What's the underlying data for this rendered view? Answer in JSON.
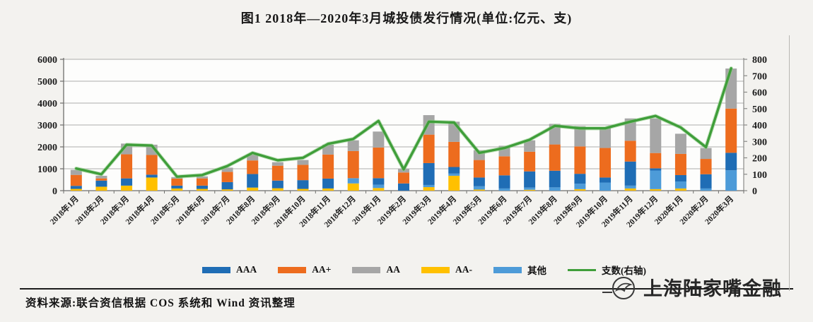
{
  "page": {
    "title": "图1  2018年—2020年3月城投债发行情况(单位:亿元、支)"
  },
  "chart_data": {
    "type": "bar",
    "subtype": "stacked-bars-with-line",
    "title": "图1  2018年—2020年3月城投债发行情况(单位:亿元、支)",
    "categories": [
      "2018年1月",
      "2018年2月",
      "2018年3月",
      "2018年4月",
      "2018年5月",
      "2018年6月",
      "2018年7月",
      "2018年8月",
      "2018年9月",
      "2018年10月",
      "2018年11月",
      "2018年12月",
      "2019年1月",
      "2019年2月",
      "2019年3月",
      "2019年4月",
      "2019年5月",
      "2019年6月",
      "2019年7月",
      "2019年8月",
      "2019年9月",
      "2019年10月",
      "2019年11月",
      "2019年12月",
      "2020年1月",
      "2020年2月",
      "2020年3月"
    ],
    "stack_order_bottom_to_top": [
      "AA-",
      "其他",
      "AAA",
      "AA+",
      "AA"
    ],
    "series": [
      {
        "name": "AAA",
        "color": "#1f6db5",
        "values": [
          140,
          280,
          330,
          130,
          130,
          150,
          330,
          620,
          350,
          400,
          450,
          0,
          300,
          330,
          1000,
          300,
          400,
          600,
          740,
          760,
          450,
          230,
          1100,
          100,
          290,
          650,
          800
        ]
      },
      {
        "name": "AA+",
        "color": "#ed6c1e",
        "values": [
          500,
          100,
          1100,
          900,
          320,
          330,
          470,
          620,
          680,
          700,
          1100,
          1240,
          1400,
          500,
          1300,
          1150,
          800,
          870,
          900,
          1200,
          1250,
          1350,
          950,
          700,
          970,
          700,
          2020
        ]
      },
      {
        "name": "AA",
        "color": "#a6a6a6",
        "values": [
          230,
          120,
          490,
          470,
          70,
          90,
          190,
          270,
          160,
          220,
          450,
          490,
          730,
          170,
          890,
          920,
          450,
          480,
          520,
          940,
          930,
          930,
          1020,
          1580,
          920,
          500,
          1830
        ]
      },
      {
        "name": "AA-",
        "color": "#ffc000",
        "values": [
          80,
          180,
          230,
          600,
          100,
          80,
          60,
          140,
          110,
          80,
          100,
          330,
          120,
          0,
          160,
          680,
          50,
          0,
          40,
          0,
          70,
          0,
          100,
          70,
          100,
          0,
          0
        ]
      },
      {
        "name": "其他",
        "color": "#4d9bd8",
        "values": [
          0,
          0,
          0,
          0,
          0,
          0,
          0,
          0,
          0,
          0,
          0,
          240,
          150,
          0,
          100,
          100,
          150,
          100,
          100,
          150,
          250,
          370,
          130,
          850,
          320,
          100,
          930
        ]
      }
    ],
    "line_series": {
      "name": "支数(右轴)",
      "color": "#3f9e3a",
      "values": [
        135,
        100,
        280,
        275,
        85,
        95,
        150,
        230,
        185,
        200,
        285,
        315,
        425,
        130,
        420,
        415,
        230,
        260,
        310,
        395,
        380,
        380,
        420,
        455,
        385,
        265,
        745
      ]
    },
    "left_axis": {
      "min": 0,
      "max": 6000,
      "step": 1000,
      "ticks": [
        "0",
        "1000",
        "2000",
        "3000",
        "4000",
        "5000",
        "6000"
      ]
    },
    "right_axis": {
      "min": 0,
      "max": 800,
      "step": 100,
      "ticks": [
        "0",
        "100",
        "200",
        "300",
        "400",
        "500",
        "600",
        "700",
        "800"
      ]
    },
    "legend": [
      {
        "label": "AAA",
        "color": "#1f6db5",
        "kind": "box"
      },
      {
        "label": "AA+",
        "color": "#ed6c1e",
        "kind": "box"
      },
      {
        "label": "AA",
        "color": "#a6a6a6",
        "kind": "box"
      },
      {
        "label": "AA-",
        "color": "#ffc000",
        "kind": "box"
      },
      {
        "label": "其他",
        "color": "#4d9bd8",
        "kind": "box"
      },
      {
        "label": "支数(右轴)",
        "color": "#3f9e3a",
        "kind": "line"
      }
    ],
    "legend_position": "bottom",
    "grid": true,
    "units": "亿元、支"
  },
  "footer": {
    "source": "资料来源:联合资信根据 COS 系统和 Wind 资讯整理"
  },
  "logo": {
    "text": "上海陆家嘴金融"
  }
}
